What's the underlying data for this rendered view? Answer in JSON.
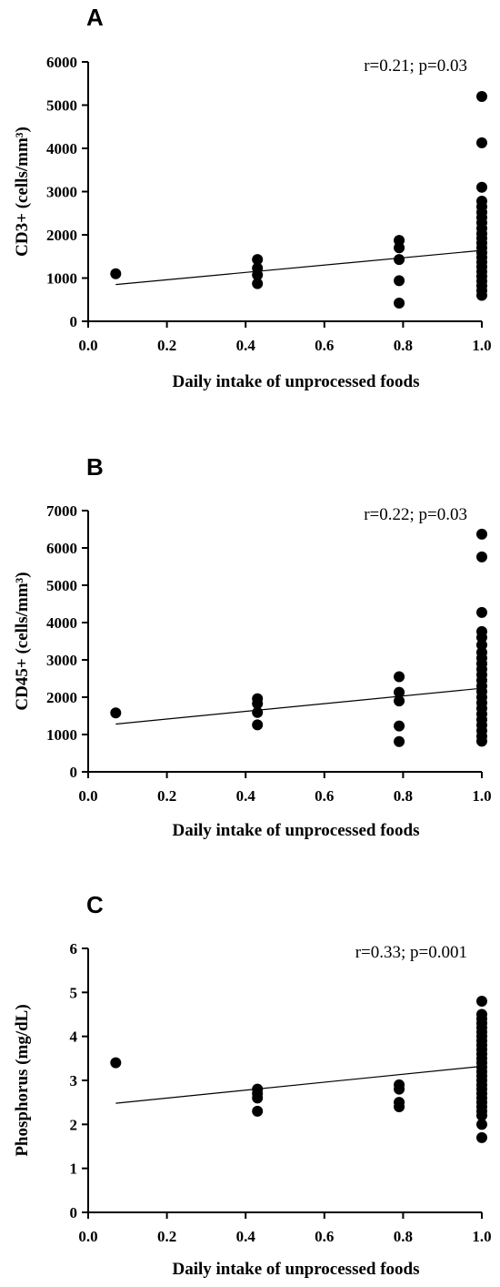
{
  "chart_data": [
    {
      "type": "scatter",
      "panel_label": "A",
      "title": "",
      "xlabel": "Daily intake of unprocessed foods",
      "ylabel": "CD3+ (cells/mm³)",
      "annotation": "r=0.21; p=0.03",
      "xlim": [
        0,
        1
      ],
      "ylim": [
        0,
        6000
      ],
      "xticks": [
        0.0,
        0.2,
        0.4,
        0.6,
        0.8,
        1.0
      ],
      "xtick_labels": [
        "0.0",
        "0.2",
        "0.4",
        "0.6",
        "0.8",
        "1.0"
      ],
      "yticks": [
        0,
        1000,
        2000,
        3000,
        4000,
        5000,
        6000
      ],
      "ytick_labels": [
        "0",
        "1000",
        "2000",
        "3000",
        "4000",
        "5000",
        "6000"
      ],
      "grid": false,
      "legend": "none",
      "points": [
        {
          "x": 0.07,
          "y": 1100
        },
        {
          "x": 0.43,
          "y": 1430
        },
        {
          "x": 0.43,
          "y": 1230
        },
        {
          "x": 0.43,
          "y": 1070
        },
        {
          "x": 0.43,
          "y": 870
        },
        {
          "x": 0.79,
          "y": 1870
        },
        {
          "x": 0.79,
          "y": 1700
        },
        {
          "x": 0.79,
          "y": 1430
        },
        {
          "x": 0.79,
          "y": 940
        },
        {
          "x": 0.79,
          "y": 420
        },
        {
          "x": 1.0,
          "y": 5200
        },
        {
          "x": 1.0,
          "y": 4130
        },
        {
          "x": 1.0,
          "y": 3100
        },
        {
          "x": 1.0,
          "y": 2780
        },
        {
          "x": 1.0,
          "y": 2650
        },
        {
          "x": 1.0,
          "y": 2520
        },
        {
          "x": 1.0,
          "y": 2400
        },
        {
          "x": 1.0,
          "y": 2280
        },
        {
          "x": 1.0,
          "y": 2150
        },
        {
          "x": 1.0,
          "y": 2030
        },
        {
          "x": 1.0,
          "y": 1920
        },
        {
          "x": 1.0,
          "y": 1810
        },
        {
          "x": 1.0,
          "y": 1700
        },
        {
          "x": 1.0,
          "y": 1590
        },
        {
          "x": 1.0,
          "y": 1480
        },
        {
          "x": 1.0,
          "y": 1370
        },
        {
          "x": 1.0,
          "y": 1260
        },
        {
          "x": 1.0,
          "y": 1150
        },
        {
          "x": 1.0,
          "y": 1040
        },
        {
          "x": 1.0,
          "y": 930
        },
        {
          "x": 1.0,
          "y": 820
        },
        {
          "x": 1.0,
          "y": 710
        },
        {
          "x": 1.0,
          "y": 600
        }
      ],
      "fit_line": {
        "x": [
          0.07,
          1.0
        ],
        "y": [
          850,
          1640
        ]
      }
    },
    {
      "type": "scatter",
      "panel_label": "B",
      "title": "",
      "xlabel": "Daily intake of unprocessed foods",
      "ylabel": "CD45+ (cells/mm³)",
      "annotation": "r=0.22; p=0.03",
      "xlim": [
        0,
        1
      ],
      "ylim": [
        0,
        7000
      ],
      "xticks": [
        0.0,
        0.2,
        0.4,
        0.6,
        0.8,
        1.0
      ],
      "xtick_labels": [
        "0.0",
        "0.2",
        "0.4",
        "0.6",
        "0.8",
        "1.0"
      ],
      "yticks": [
        0,
        1000,
        2000,
        3000,
        4000,
        5000,
        6000,
        7000
      ],
      "ytick_labels": [
        "0",
        "1000",
        "2000",
        "3000",
        "4000",
        "5000",
        "6000",
        "7000"
      ],
      "grid": false,
      "legend": "none",
      "points": [
        {
          "x": 0.07,
          "y": 1580
        },
        {
          "x": 0.43,
          "y": 1960
        },
        {
          "x": 0.43,
          "y": 1830
        },
        {
          "x": 0.43,
          "y": 1590
        },
        {
          "x": 0.43,
          "y": 1260
        },
        {
          "x": 0.79,
          "y": 2550
        },
        {
          "x": 0.79,
          "y": 2130
        },
        {
          "x": 0.79,
          "y": 1900
        },
        {
          "x": 0.79,
          "y": 1230
        },
        {
          "x": 0.79,
          "y": 810
        },
        {
          "x": 1.0,
          "y": 6370
        },
        {
          "x": 1.0,
          "y": 5760
        },
        {
          "x": 1.0,
          "y": 4270
        },
        {
          "x": 1.0,
          "y": 3760
        },
        {
          "x": 1.0,
          "y": 3600
        },
        {
          "x": 1.0,
          "y": 3400
        },
        {
          "x": 1.0,
          "y": 3200
        },
        {
          "x": 1.0,
          "y": 3050
        },
        {
          "x": 1.0,
          "y": 2900
        },
        {
          "x": 1.0,
          "y": 2750
        },
        {
          "x": 1.0,
          "y": 2600
        },
        {
          "x": 1.0,
          "y": 2450
        },
        {
          "x": 1.0,
          "y": 2300
        },
        {
          "x": 1.0,
          "y": 2150
        },
        {
          "x": 1.0,
          "y": 2000
        },
        {
          "x": 1.0,
          "y": 1850
        },
        {
          "x": 1.0,
          "y": 1700
        },
        {
          "x": 1.0,
          "y": 1550
        },
        {
          "x": 1.0,
          "y": 1400
        },
        {
          "x": 1.0,
          "y": 1250
        },
        {
          "x": 1.0,
          "y": 1100
        },
        {
          "x": 1.0,
          "y": 950
        },
        {
          "x": 1.0,
          "y": 820
        }
      ],
      "fit_line": {
        "x": [
          0.07,
          1.0
        ],
        "y": [
          1280,
          2240
        ]
      }
    },
    {
      "type": "scatter",
      "panel_label": "C",
      "title": "",
      "xlabel": "Daily intake of unprocessed foods",
      "ylabel": "Phosphorus (mg/dL)",
      "annotation": "r=0.33; p=0.001",
      "xlim": [
        0,
        1
      ],
      "ylim": [
        0,
        6
      ],
      "xticks": [
        0.0,
        0.2,
        0.4,
        0.6,
        0.8,
        1.0
      ],
      "xtick_labels": [
        "0.0",
        "0.2",
        "0.4",
        "0.6",
        "0.8",
        "1.0"
      ],
      "yticks": [
        0,
        1,
        2,
        3,
        4,
        5,
        6
      ],
      "ytick_labels": [
        "0",
        "1",
        "2",
        "3",
        "4",
        "5",
        "6"
      ],
      "grid": false,
      "legend": "none",
      "points": [
        {
          "x": 0.07,
          "y": 3.4
        },
        {
          "x": 0.43,
          "y": 2.8
        },
        {
          "x": 0.43,
          "y": 2.7
        },
        {
          "x": 0.43,
          "y": 2.6
        },
        {
          "x": 0.43,
          "y": 2.3
        },
        {
          "x": 0.79,
          "y": 2.9
        },
        {
          "x": 0.79,
          "y": 2.8
        },
        {
          "x": 0.79,
          "y": 2.5
        },
        {
          "x": 0.79,
          "y": 2.4
        },
        {
          "x": 1.0,
          "y": 4.8
        },
        {
          "x": 1.0,
          "y": 4.5
        },
        {
          "x": 1.0,
          "y": 4.4
        },
        {
          "x": 1.0,
          "y": 4.3
        },
        {
          "x": 1.0,
          "y": 4.2
        },
        {
          "x": 1.0,
          "y": 4.1
        },
        {
          "x": 1.0,
          "y": 4.0
        },
        {
          "x": 1.0,
          "y": 3.9
        },
        {
          "x": 1.0,
          "y": 3.8
        },
        {
          "x": 1.0,
          "y": 3.7
        },
        {
          "x": 1.0,
          "y": 3.6
        },
        {
          "x": 1.0,
          "y": 3.5
        },
        {
          "x": 1.0,
          "y": 3.4
        },
        {
          "x": 1.0,
          "y": 3.3
        },
        {
          "x": 1.0,
          "y": 3.2
        },
        {
          "x": 1.0,
          "y": 3.1
        },
        {
          "x": 1.0,
          "y": 3.0
        },
        {
          "x": 1.0,
          "y": 2.9
        },
        {
          "x": 1.0,
          "y": 2.8
        },
        {
          "x": 1.0,
          "y": 2.7
        },
        {
          "x": 1.0,
          "y": 2.6
        },
        {
          "x": 1.0,
          "y": 2.5
        },
        {
          "x": 1.0,
          "y": 2.4
        },
        {
          "x": 1.0,
          "y": 2.3
        },
        {
          "x": 1.0,
          "y": 2.2
        },
        {
          "x": 1.0,
          "y": 2.0
        },
        {
          "x": 1.0,
          "y": 1.7
        }
      ],
      "fit_line": {
        "x": [
          0.07,
          1.0
        ],
        "y": [
          2.48,
          3.32
        ]
      }
    }
  ]
}
